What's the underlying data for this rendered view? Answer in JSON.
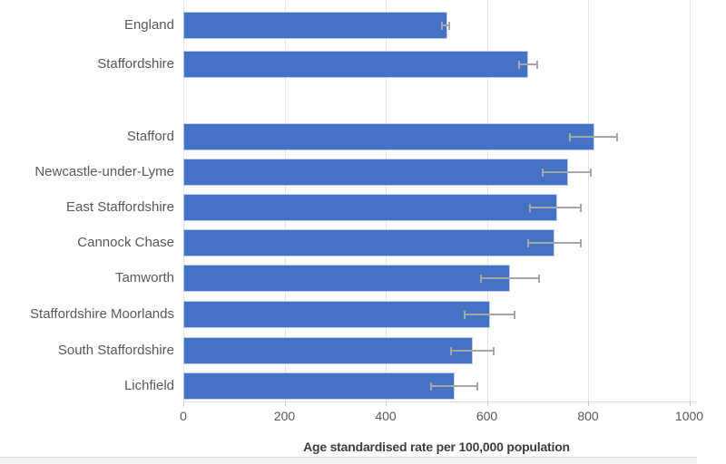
{
  "chart_data": {
    "type": "bar",
    "orientation": "horizontal",
    "title": "",
    "xlabel": "Age standardised rate per 100,000 population",
    "ylabel": "",
    "xlim": [
      0,
      1000
    ],
    "xticks": [
      0,
      200,
      400,
      600,
      800,
      1000
    ],
    "xtick_labels": [
      "0",
      "200",
      "400",
      "600",
      "800",
      "1000"
    ],
    "grid": true,
    "legend_position": "none",
    "bar_color": "#4472c4",
    "error_bar_color": "#a6a6a6",
    "group_gap_after_index": 1,
    "categories": [
      "England",
      "Staffordshire",
      "Stafford",
      "Newcastle-under-Lyme",
      "East Staffordshire",
      "Cannock Chase",
      "Tamworth",
      "Staffordshire Moorlands",
      "South Staffordshire",
      "Lichfield"
    ],
    "values": [
      518,
      678,
      809,
      757,
      735,
      730,
      642,
      603,
      569,
      533
    ],
    "ci_low": [
      511,
      664,
      764,
      710,
      685,
      681,
      589,
      556,
      529,
      490
    ],
    "ci_high": [
      526,
      700,
      858,
      806,
      786,
      786,
      703,
      655,
      613,
      581
    ]
  }
}
